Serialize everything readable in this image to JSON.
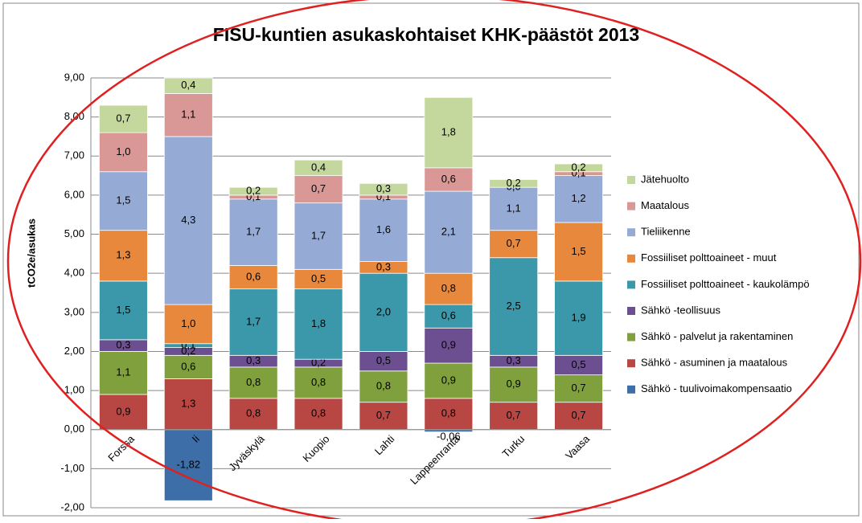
{
  "chart_data": {
    "type": "bar",
    "stacked": true,
    "title": "FISU-kuntien asukaskohtaiset KHK-päästöt 2013",
    "y_label": "tCO2e/asukas",
    "categories": [
      "Forssa",
      "Ii",
      "Jyväskylä",
      "Kuopio",
      "Lahti",
      "Lappeenranta",
      "Turku",
      "Vaasa"
    ],
    "ylim": [
      -2,
      9
    ],
    "yticks": [
      {
        "value": -2,
        "label": "-2,00"
      },
      {
        "value": -1,
        "label": "-1,00"
      },
      {
        "value": 0,
        "label": "0,00"
      },
      {
        "value": 1,
        "label": "1,00"
      },
      {
        "value": 2,
        "label": "2,00"
      },
      {
        "value": 3,
        "label": "3,00"
      },
      {
        "value": 4,
        "label": "4,00"
      },
      {
        "value": 5,
        "label": "5,00"
      },
      {
        "value": 6,
        "label": "6,00"
      },
      {
        "value": 7,
        "label": "7,00"
      },
      {
        "value": 8,
        "label": "8,00"
      },
      {
        "value": 9,
        "label": "9,00"
      }
    ],
    "grid": true,
    "legend": "right",
    "series": [
      {
        "name": "Sähkö - tuulivoimakompensaatio",
        "color": "#3d6ea8",
        "values": [
          null,
          -1.82,
          null,
          null,
          null,
          -0.06,
          null,
          null
        ],
        "value_labels": [
          null,
          "-1,82",
          null,
          null,
          null,
          "-0,06",
          null,
          null
        ]
      },
      {
        "name": "Sähkö - asuminen ja maatalous",
        "color": "#b84744",
        "values": [
          0.9,
          1.3,
          0.8,
          0.8,
          0.7,
          0.8,
          0.7,
          0.7
        ],
        "value_labels": [
          "0,9",
          "1,3",
          "0,8",
          "0,8",
          "0,7",
          "0,8",
          "0,7",
          "0,7"
        ]
      },
      {
        "name": "Sähkö - palvelut ja rakentaminen",
        "color": "#7fa03c",
        "values": [
          1.1,
          0.6,
          0.8,
          0.8,
          0.8,
          0.9,
          0.9,
          0.7
        ],
        "value_labels": [
          "1,1",
          "0,6",
          "0,8",
          "0,8",
          "0,8",
          "0,9",
          "0,9",
          "0,7"
        ]
      },
      {
        "name": "Sähkö -teollisuus",
        "color": "#6c4f90",
        "values": [
          0.3,
          0.2,
          0.3,
          0.2,
          0.5,
          0.9,
          0.3,
          0.5
        ],
        "value_labels": [
          "0,3",
          "0,2",
          "0,3",
          "0,2",
          "0,5",
          "0,9",
          "0,3",
          "0,5"
        ]
      },
      {
        "name": "Fossiiliset polttoaineet - kaukolämpö",
        "color": "#3b98aa",
        "values": [
          1.5,
          0.1,
          1.7,
          1.8,
          2.0,
          0.6,
          2.5,
          1.9
        ],
        "value_labels": [
          "1,5",
          "0,1",
          "1,7",
          "1,8",
          "2,0",
          "0,6",
          "2,5",
          "1,9"
        ]
      },
      {
        "name": "Fossiiliset polttoaineet - muut",
        "color": "#e8883c",
        "values": [
          1.3,
          1.0,
          0.6,
          0.5,
          0.3,
          0.8,
          0.7,
          1.5
        ],
        "value_labels": [
          "1,3",
          "1,0",
          "0,6",
          "0,5",
          "0,3",
          "0,8",
          "0,7",
          "1,5"
        ]
      },
      {
        "name": "Tieliikenne",
        "color": "#95abd6",
        "values": [
          1.5,
          4.3,
          1.7,
          1.7,
          1.6,
          2.1,
          1.1,
          1.2
        ],
        "value_labels": [
          "1,5",
          "4,3",
          "1,7",
          "1,7",
          "1,6",
          "2,1",
          "1,1",
          "1,2"
        ]
      },
      {
        "name": "Maatalous",
        "color": "#d99795",
        "values": [
          1.0,
          1.1,
          0.1,
          0.7,
          0.1,
          0.6,
          0.0,
          0.1
        ],
        "value_labels": [
          "1,0",
          "1,1",
          "0,1",
          "0,7",
          "0,1",
          "0,6",
          "0,0",
          "0,1"
        ]
      },
      {
        "name": "Jätehuolto",
        "color": "#c4d79c",
        "values": [
          0.7,
          0.4,
          0.2,
          0.4,
          0.3,
          1.8,
          0.2,
          0.2
        ],
        "value_labels": [
          "0,7",
          "0,4",
          "0,2",
          "0,4",
          "0,3",
          "1,8",
          "0,2",
          "0,2"
        ]
      }
    ]
  }
}
